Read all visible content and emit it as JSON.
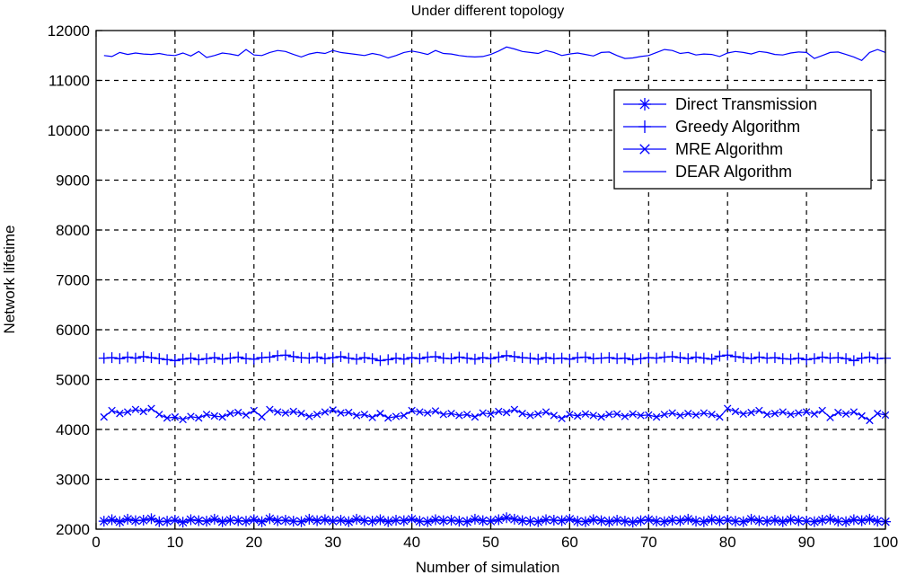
{
  "chart_data": {
    "type": "line",
    "title": "Under different topology",
    "xlabel": "Number of simulation",
    "ylabel": "Network lifetime",
    "xlim": [
      0,
      100
    ],
    "ylim": [
      2000,
      12000
    ],
    "x_ticks": [
      0,
      10,
      20,
      30,
      40,
      50,
      60,
      70,
      80,
      90,
      100
    ],
    "y_ticks": [
      2000,
      3000,
      4000,
      5000,
      6000,
      7000,
      8000,
      9000,
      10000,
      11000,
      12000
    ],
    "grid": true,
    "legend_position": "top-right",
    "line_color": "#0000ff",
    "x_start": 1,
    "x_end": 100,
    "series": [
      {
        "name": "Direct Transmission",
        "marker": "star",
        "values": [
          2160,
          2190,
          2150,
          2200,
          2170,
          2180,
          2210,
          2150,
          2160,
          2180,
          2140,
          2190,
          2170,
          2160,
          2200,
          2150,
          2180,
          2170,
          2160,
          2190,
          2150,
          2210,
          2170,
          2180,
          2160,
          2150,
          2200,
          2170,
          2190,
          2160,
          2180,
          2150,
          2200,
          2170,
          2160,
          2190,
          2150,
          2180,
          2170,
          2200,
          2160,
          2150,
          2190,
          2170,
          2180,
          2160,
          2150,
          2200,
          2170,
          2160,
          2190,
          2230,
          2200,
          2170,
          2160,
          2150,
          2190,
          2180,
          2170,
          2200,
          2160,
          2150,
          2190,
          2170,
          2150,
          2180,
          2160,
          2140,
          2170,
          2190,
          2160,
          2150,
          2180,
          2170,
          2200,
          2160,
          2150,
          2190,
          2170,
          2180,
          2160,
          2150,
          2200,
          2170,
          2160,
          2180,
          2150,
          2190,
          2170,
          2160,
          2150,
          2180,
          2200,
          2160,
          2150,
          2190,
          2170,
          2200,
          2160,
          2150
        ]
      },
      {
        "name": "Greedy Algorithm",
        "marker": "plus",
        "values": [
          5430,
          5440,
          5420,
          5450,
          5430,
          5460,
          5440,
          5420,
          5400,
          5380,
          5410,
          5430,
          5400,
          5420,
          5440,
          5410,
          5430,
          5450,
          5420,
          5410,
          5440,
          5450,
          5480,
          5490,
          5460,
          5440,
          5430,
          5450,
          5420,
          5440,
          5460,
          5430,
          5410,
          5440,
          5420,
          5380,
          5400,
          5430,
          5410,
          5440,
          5420,
          5450,
          5460,
          5430,
          5420,
          5450,
          5430,
          5410,
          5440,
          5420,
          5450,
          5480,
          5460,
          5440,
          5430,
          5410,
          5440,
          5420,
          5430,
          5410,
          5440,
          5450,
          5420,
          5430,
          5440,
          5420,
          5430,
          5400,
          5420,
          5440,
          5430,
          5450,
          5460,
          5440,
          5420,
          5450,
          5430,
          5410,
          5470,
          5490,
          5460,
          5440,
          5420,
          5450,
          5430,
          5440,
          5420,
          5410,
          5430,
          5400,
          5420,
          5450,
          5430,
          5440,
          5420,
          5380,
          5430,
          5450,
          5420,
          5430
        ]
      },
      {
        "name": "MRE Algorithm",
        "marker": "x",
        "values": [
          4250,
          4380,
          4320,
          4350,
          4400,
          4360,
          4420,
          4300,
          4230,
          4250,
          4200,
          4260,
          4230,
          4300,
          4270,
          4250,
          4320,
          4340,
          4290,
          4380,
          4250,
          4400,
          4350,
          4330,
          4360,
          4320,
          4260,
          4300,
          4350,
          4390,
          4330,
          4340,
          4280,
          4300,
          4240,
          4320,
          4230,
          4260,
          4280,
          4380,
          4350,
          4330,
          4370,
          4300,
          4320,
          4280,
          4300,
          4250,
          4330,
          4310,
          4360,
          4340,
          4400,
          4320,
          4280,
          4310,
          4350,
          4280,
          4220,
          4300,
          4270,
          4310,
          4280,
          4250,
          4300,
          4310,
          4260,
          4310,
          4280,
          4290,
          4250,
          4300,
          4330,
          4280,
          4320,
          4290,
          4330,
          4300,
          4250,
          4420,
          4360,
          4310,
          4340,
          4380,
          4300,
          4320,
          4350,
          4300,
          4330,
          4350,
          4310,
          4380,
          4240,
          4340,
          4310,
          4350,
          4270,
          4180,
          4320,
          4290
        ]
      },
      {
        "name": "DEAR Algorithm",
        "marker": "none",
        "values": [
          11500,
          11480,
          11560,
          11520,
          11550,
          11530,
          11520,
          11540,
          11510,
          11500,
          11550,
          11490,
          11580,
          11460,
          11500,
          11550,
          11530,
          11500,
          11620,
          11510,
          11500,
          11560,
          11600,
          11580,
          11520,
          11470,
          11530,
          11560,
          11540,
          11600,
          11560,
          11540,
          11520,
          11500,
          11540,
          11510,
          11450,
          11500,
          11560,
          11590,
          11560,
          11520,
          11600,
          11540,
          11530,
          11500,
          11480,
          11470,
          11480,
          11520,
          11590,
          11670,
          11630,
          11580,
          11560,
          11540,
          11600,
          11560,
          11500,
          11530,
          11550,
          11520,
          11490,
          11560,
          11570,
          11500,
          11440,
          11450,
          11480,
          11500,
          11560,
          11620,
          11600,
          11540,
          11560,
          11510,
          11530,
          11520,
          11480,
          11550,
          11580,
          11560,
          11530,
          11580,
          11560,
          11520,
          11510,
          11550,
          11570,
          11560,
          11440,
          11500,
          11560,
          11570,
          11520,
          11470,
          11400,
          11560,
          11620,
          11560
        ]
      }
    ]
  }
}
